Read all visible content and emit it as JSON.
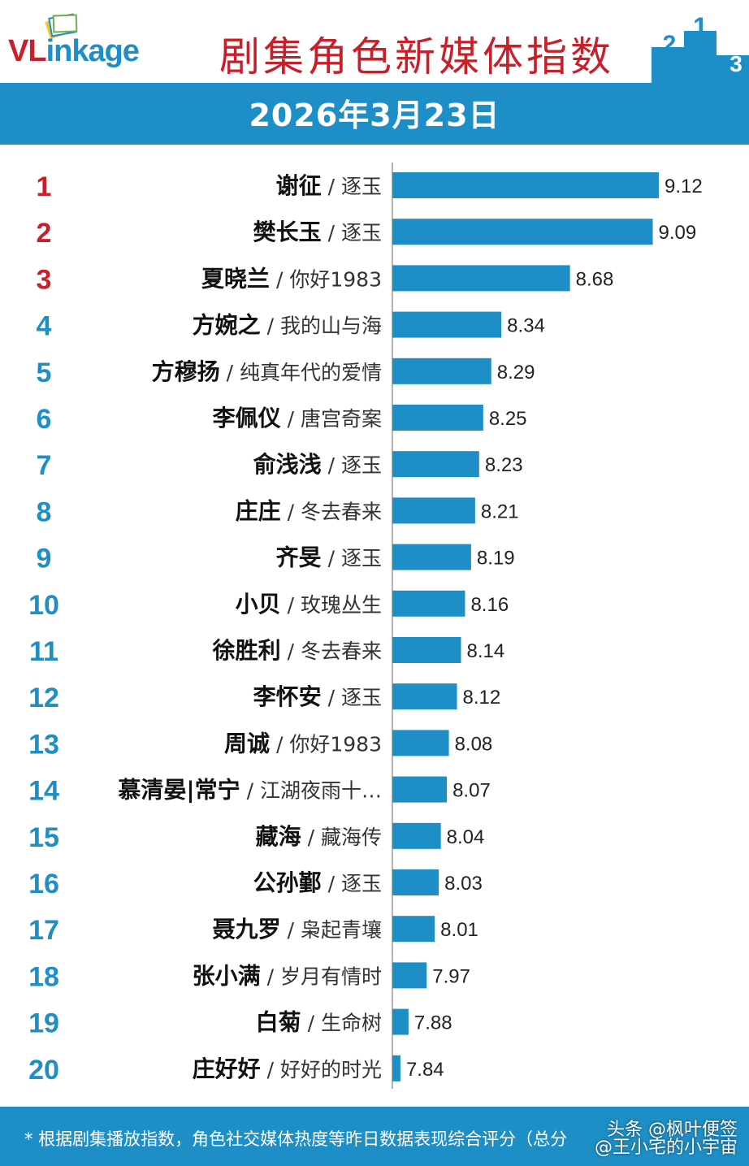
{
  "header": {
    "logo_text_vl": "VL",
    "logo_text_rest": "inkage",
    "title": "剧集角色新媒体指数",
    "podium_numbers": [
      "2",
      "1",
      "3"
    ]
  },
  "date_label": "2026年3月23日",
  "colors": {
    "brand_blue": "#1e8fc6",
    "title_red": "#c8202a",
    "bar": "#1e8fc6",
    "top_rank": "#c8202a",
    "other_rank": "#1e8fc6"
  },
  "chart_data": {
    "type": "bar",
    "orientation": "horizontal",
    "xlim": [
      7.8,
      9.2
    ],
    "grid": false,
    "rows": [
      {
        "rank": "1",
        "name": "谢征",
        "show": "逐玉",
        "value": 9.12
      },
      {
        "rank": "2",
        "name": "樊长玉",
        "show": "逐玉",
        "value": 9.09
      },
      {
        "rank": "3",
        "name": "夏晓兰",
        "show": "你好1983",
        "value": 8.68
      },
      {
        "rank": "4",
        "name": "方婉之",
        "show": "我的山与海",
        "value": 8.34
      },
      {
        "rank": "5",
        "name": "方穆扬",
        "show": "纯真年代的爱情",
        "value": 8.29
      },
      {
        "rank": "6",
        "name": "李佩仪",
        "show": "唐宫奇案",
        "value": 8.25
      },
      {
        "rank": "7",
        "name": "俞浅浅",
        "show": "逐玉",
        "value": 8.23
      },
      {
        "rank": "8",
        "name": "庄庄",
        "show": "冬去春来",
        "value": 8.21
      },
      {
        "rank": "9",
        "name": "齐旻",
        "show": "逐玉",
        "value": 8.19
      },
      {
        "rank": "10",
        "name": "小贝",
        "show": "玫瑰丛生",
        "value": 8.16
      },
      {
        "rank": "11",
        "name": "徐胜利",
        "show": "冬去春来",
        "value": 8.14
      },
      {
        "rank": "12",
        "name": "李怀安",
        "show": "逐玉",
        "value": 8.12
      },
      {
        "rank": "13",
        "name": "周诚",
        "show": "你好1983",
        "value": 8.08
      },
      {
        "rank": "14",
        "name": "慕清晏|常宁",
        "show": "江湖夜雨十…",
        "value": 8.07
      },
      {
        "rank": "15",
        "name": "藏海",
        "show": "藏海传",
        "value": 8.04
      },
      {
        "rank": "16",
        "name": "公孙鄞",
        "show": "逐玉",
        "value": 8.03
      },
      {
        "rank": "17",
        "name": "聂九罗",
        "show": "枭起青壤",
        "value": 8.01
      },
      {
        "rank": "18",
        "name": "张小满",
        "show": "岁月有情时",
        "value": 7.97
      },
      {
        "rank": "19",
        "name": "白菊",
        "show": "生命树",
        "value": 7.88
      },
      {
        "rank": "20",
        "name": "庄好好",
        "show": "好好的时光",
        "value": 7.84
      }
    ],
    "value_labels": [
      "9.12",
      "9.09",
      "8.68",
      "8.34",
      "8.29",
      "8.25",
      "8.23",
      "8.21",
      "8.19",
      "8.16",
      "8.14",
      "8.12",
      "8.08",
      "8.07",
      "8.04",
      "8.03",
      "8.01",
      "7.97",
      "7.88",
      "7.84"
    ],
    "separator": " / "
  },
  "footer": {
    "note": "* 根据剧集播放指数，角色社交媒体热度等昨日数据表现综合评分（总分",
    "watermark_line1": "头条 @枫叶便签",
    "watermark_line2": "@王小宅的小宇宙"
  }
}
